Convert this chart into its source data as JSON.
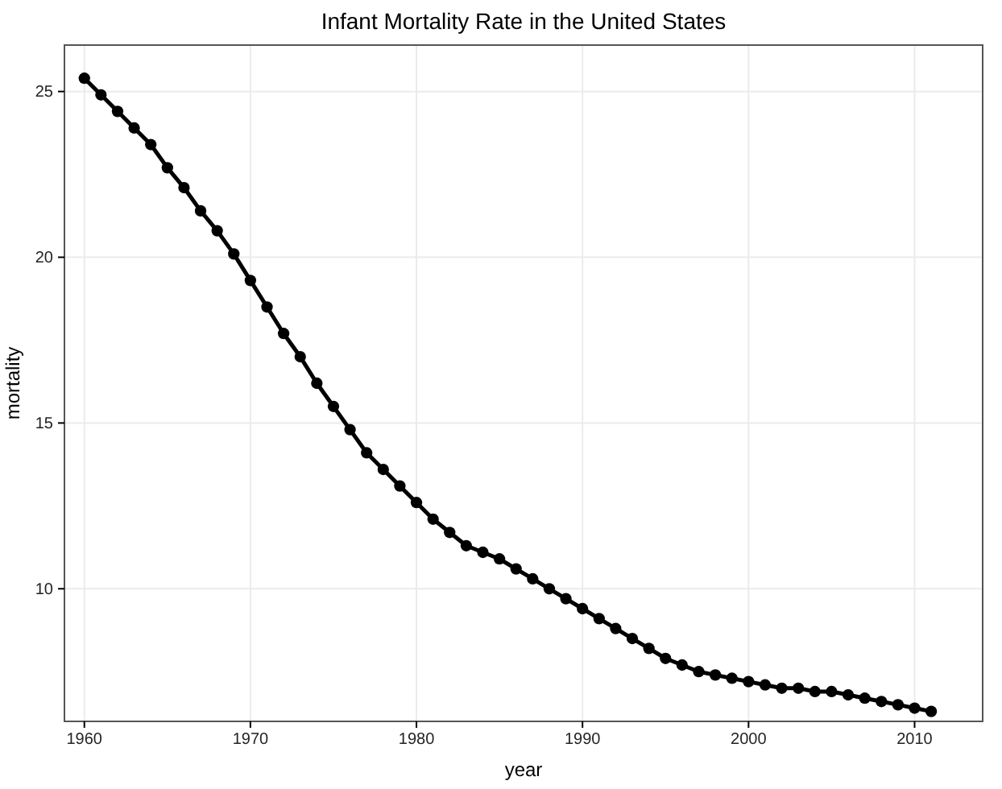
{
  "chart_data": {
    "type": "line",
    "title": "Infant Mortality Rate in the United States",
    "xlabel": "year",
    "ylabel": "mortality",
    "x": [
      1960,
      1961,
      1962,
      1963,
      1964,
      1965,
      1966,
      1967,
      1968,
      1969,
      1970,
      1971,
      1972,
      1973,
      1974,
      1975,
      1976,
      1977,
      1978,
      1979,
      1980,
      1981,
      1982,
      1983,
      1984,
      1985,
      1986,
      1987,
      1988,
      1989,
      1990,
      1991,
      1992,
      1993,
      1994,
      1995,
      1996,
      1997,
      1998,
      1999,
      2000,
      2001,
      2002,
      2003,
      2004,
      2005,
      2006,
      2007,
      2008,
      2009,
      2010,
      2011
    ],
    "series": [
      {
        "color": "#000000",
        "values": [
          25.4,
          24.9,
          24.4,
          23.9,
          23.4,
          22.7,
          22.1,
          21.4,
          20.8,
          20.1,
          19.3,
          18.5,
          17.7,
          17.0,
          16.2,
          15.5,
          14.8,
          14.1,
          13.6,
          13.1,
          12.6,
          12.1,
          11.7,
          11.3,
          11.1,
          10.9,
          10.6,
          10.3,
          10.0,
          9.7,
          9.4,
          9.1,
          8.8,
          8.5,
          8.2,
          7.9,
          7.7,
          7.5,
          7.4,
          7.3,
          7.2,
          7.1,
          7.0,
          7.0,
          6.9,
          6.9,
          6.8,
          6.7,
          6.6,
          6.5,
          6.4,
          6.3
        ]
      }
    ],
    "xlim": [
      1958.8,
      2014.1
    ],
    "xticks": [
      1960,
      1970,
      1980,
      1990,
      2000,
      2010
    ],
    "ylim": [
      6,
      26.4
    ],
    "yticks": [
      10,
      15,
      20,
      25
    ],
    "grid": true,
    "marker": "circle",
    "line_style": "solid"
  }
}
